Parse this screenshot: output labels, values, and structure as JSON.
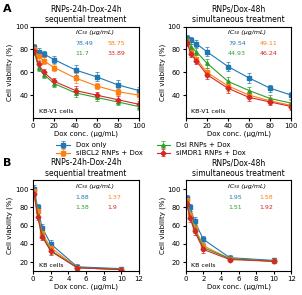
{
  "chart_data": [
    {
      "type": "line",
      "panel_label": "A",
      "legend": "center",
      "title": "RNPs-24h-Dox-24h",
      "subtitle": "sequential treatment",
      "cell_label": "KB-V1 cells",
      "ic50_label": "IC₅₀ (μg/mL)",
      "xlabel": "Dox conc. (μg/mL)",
      "ylabel": "Cell viability (%)",
      "xlim": [
        0,
        100
      ],
      "ylim": [
        20,
        100
      ],
      "xticks": [
        0,
        20,
        40,
        60,
        80,
        100
      ],
      "yticks": [
        40,
        60,
        80,
        100
      ],
      "x": [
        1,
        5,
        10,
        20,
        40,
        60,
        80,
        100
      ],
      "series": [
        {
          "name": "Dox only",
          "marker": "square",
          "values": [
            82,
            78,
            76,
            71,
            62,
            56,
            49,
            44
          ],
          "error": [
            3,
            3,
            3,
            3,
            4,
            4,
            4,
            3
          ],
          "ic50": 78.49
        },
        {
          "name": "siBCL2 RNPs + Dox",
          "marker": "square",
          "values": [
            80,
            74,
            70,
            64,
            55,
            48,
            43,
            40
          ],
          "error": [
            3,
            3,
            3,
            3,
            4,
            3,
            3,
            3
          ],
          "ic50": 58.75
        },
        {
          "name": "Dsi RNPs + Dox",
          "marker": "triangle",
          "values": [
            78,
            64,
            58,
            50,
            42,
            38,
            34,
            30
          ],
          "error": [
            3,
            3,
            3,
            3,
            4,
            3,
            3,
            3
          ],
          "ic50": 11.7
        },
        {
          "name": "siMDR1 RNPs + Dox",
          "marker": "diamond",
          "values": [
            79,
            67,
            60,
            52,
            44,
            40,
            36,
            32
          ],
          "error": [
            3,
            3,
            3,
            3,
            4,
            3,
            3,
            3
          ],
          "ic50": 33.89
        }
      ]
    },
    {
      "type": "line",
      "title": "RNPs/Dox-48h",
      "subtitle": "simultaneous treatment",
      "cell_label": "KB-V1 cells",
      "ic50_label": "IC₅₀ (μg/mL)",
      "xlabel": "Dox conc. (μg/mL)",
      "ylabel": "Cell viability (%)",
      "xlim": [
        0,
        100
      ],
      "ylim": [
        20,
        100
      ],
      "xticks": [
        0,
        20,
        40,
        60,
        80,
        100
      ],
      "yticks": [
        40,
        60,
        80,
        100
      ],
      "x": [
        1,
        5,
        10,
        20,
        40,
        60,
        80,
        100
      ],
      "series": [
        {
          "name": "Dox only",
          "marker": "square",
          "values": [
            90,
            88,
            85,
            78,
            65,
            55,
            46,
            40
          ],
          "error": [
            3,
            3,
            3,
            4,
            4,
            4,
            3,
            3
          ],
          "ic50": 79.54
        },
        {
          "name": "siBCL2 RNPs + Dox",
          "marker": "square",
          "values": [
            87,
            78,
            72,
            60,
            48,
            40,
            35,
            31
          ],
          "error": [
            3,
            3,
            3,
            4,
            4,
            3,
            3,
            3
          ],
          "ic50": 49.11
        },
        {
          "name": "Dsi RNPs + Dox",
          "marker": "triangle",
          "values": [
            88,
            82,
            78,
            68,
            52,
            44,
            37,
            33
          ],
          "error": [
            3,
            3,
            3,
            4,
            4,
            3,
            3,
            3
          ],
          "ic50": 44.93
        },
        {
          "name": "siMDR1 RNPs + Dox",
          "marker": "diamond",
          "values": [
            86,
            76,
            70,
            58,
            46,
            38,
            34,
            30
          ],
          "error": [
            3,
            3,
            3,
            4,
            4,
            3,
            3,
            3
          ],
          "ic50": 46.24
        }
      ]
    },
    {
      "type": "line",
      "panel_label": "B",
      "title": "RNPs-24h-Dox-24h",
      "subtitle": "sequential treatment",
      "cell_label": "KB cells",
      "ic50_label": "IC₅₀ (μg/mL)",
      "xlabel": "Dox conc. (μg/mL)",
      "ylabel": "Cell viability (%)",
      "xlim": [
        0,
        12
      ],
      "ylim": [
        10,
        110
      ],
      "xticks": [
        0,
        2,
        4,
        6,
        8,
        10,
        12
      ],
      "yticks": [
        20,
        40,
        60,
        80,
        100
      ],
      "x": [
        0.1,
        0.5,
        1,
        2,
        5,
        10
      ],
      "series": [
        {
          "name": "Dox only",
          "marker": "square",
          "values": [
            100,
            80,
            58,
            40,
            15,
            13
          ],
          "error": [
            4,
            4,
            4,
            4,
            3,
            2
          ],
          "ic50": 1.88
        },
        {
          "name": "siBCL2 RNPs + Dox",
          "marker": "square",
          "values": [
            98,
            76,
            52,
            36,
            14,
            12
          ],
          "error": [
            4,
            4,
            4,
            4,
            3,
            2
          ],
          "ic50": 1.37
        },
        {
          "name": "Dsi RNPs + Dox",
          "marker": "triangle",
          "values": [
            96,
            72,
            50,
            33,
            14,
            12
          ],
          "error": [
            4,
            4,
            4,
            4,
            3,
            2
          ],
          "ic50": 1.38
        },
        {
          "name": "siMDR1 RNPs + Dox",
          "marker": "diamond",
          "values": [
            95,
            70,
            48,
            32,
            14,
            12
          ],
          "error": [
            4,
            4,
            4,
            4,
            3,
            2
          ],
          "ic50": 1.9
        }
      ]
    },
    {
      "type": "line",
      "title": "RNPs/Dox-48h",
      "subtitle": "simultaneous treatment",
      "cell_label": "KB cells",
      "ic50_label": "IC₅₀ (μg/mL)",
      "xlabel": "Dox conc. (μg/mL)",
      "ylabel": "Cell viability (%)",
      "xlim": [
        0,
        12
      ],
      "ylim": [
        10,
        110
      ],
      "xticks": [
        0,
        2,
        4,
        6,
        8,
        10,
        12
      ],
      "yticks": [
        20,
        40,
        60,
        80,
        100
      ],
      "x": [
        0.1,
        0.5,
        1,
        2,
        5,
        10
      ],
      "series": [
        {
          "name": "Dox only",
          "marker": "square",
          "values": [
            90,
            80,
            65,
            45,
            25,
            22
          ],
          "error": [
            4,
            4,
            4,
            4,
            3,
            2
          ],
          "ic50": 1.95
        },
        {
          "name": "siBCL2 RNPs + Dox",
          "marker": "square",
          "values": [
            88,
            72,
            58,
            38,
            24,
            21
          ],
          "error": [
            4,
            4,
            4,
            4,
            3,
            2
          ],
          "ic50": 1.58
        },
        {
          "name": "Dsi RNPs + Dox",
          "marker": "triangle",
          "values": [
            86,
            70,
            56,
            36,
            24,
            21
          ],
          "error": [
            4,
            4,
            4,
            4,
            3,
            2
          ],
          "ic50": 1.51
        },
        {
          "name": "siMDR1 RNPs + Dox",
          "marker": "diamond",
          "values": [
            84,
            68,
            54,
            34,
            23,
            21
          ],
          "error": [
            4,
            4,
            4,
            4,
            3,
            2
          ],
          "ic50": 1.92
        }
      ]
    }
  ]
}
